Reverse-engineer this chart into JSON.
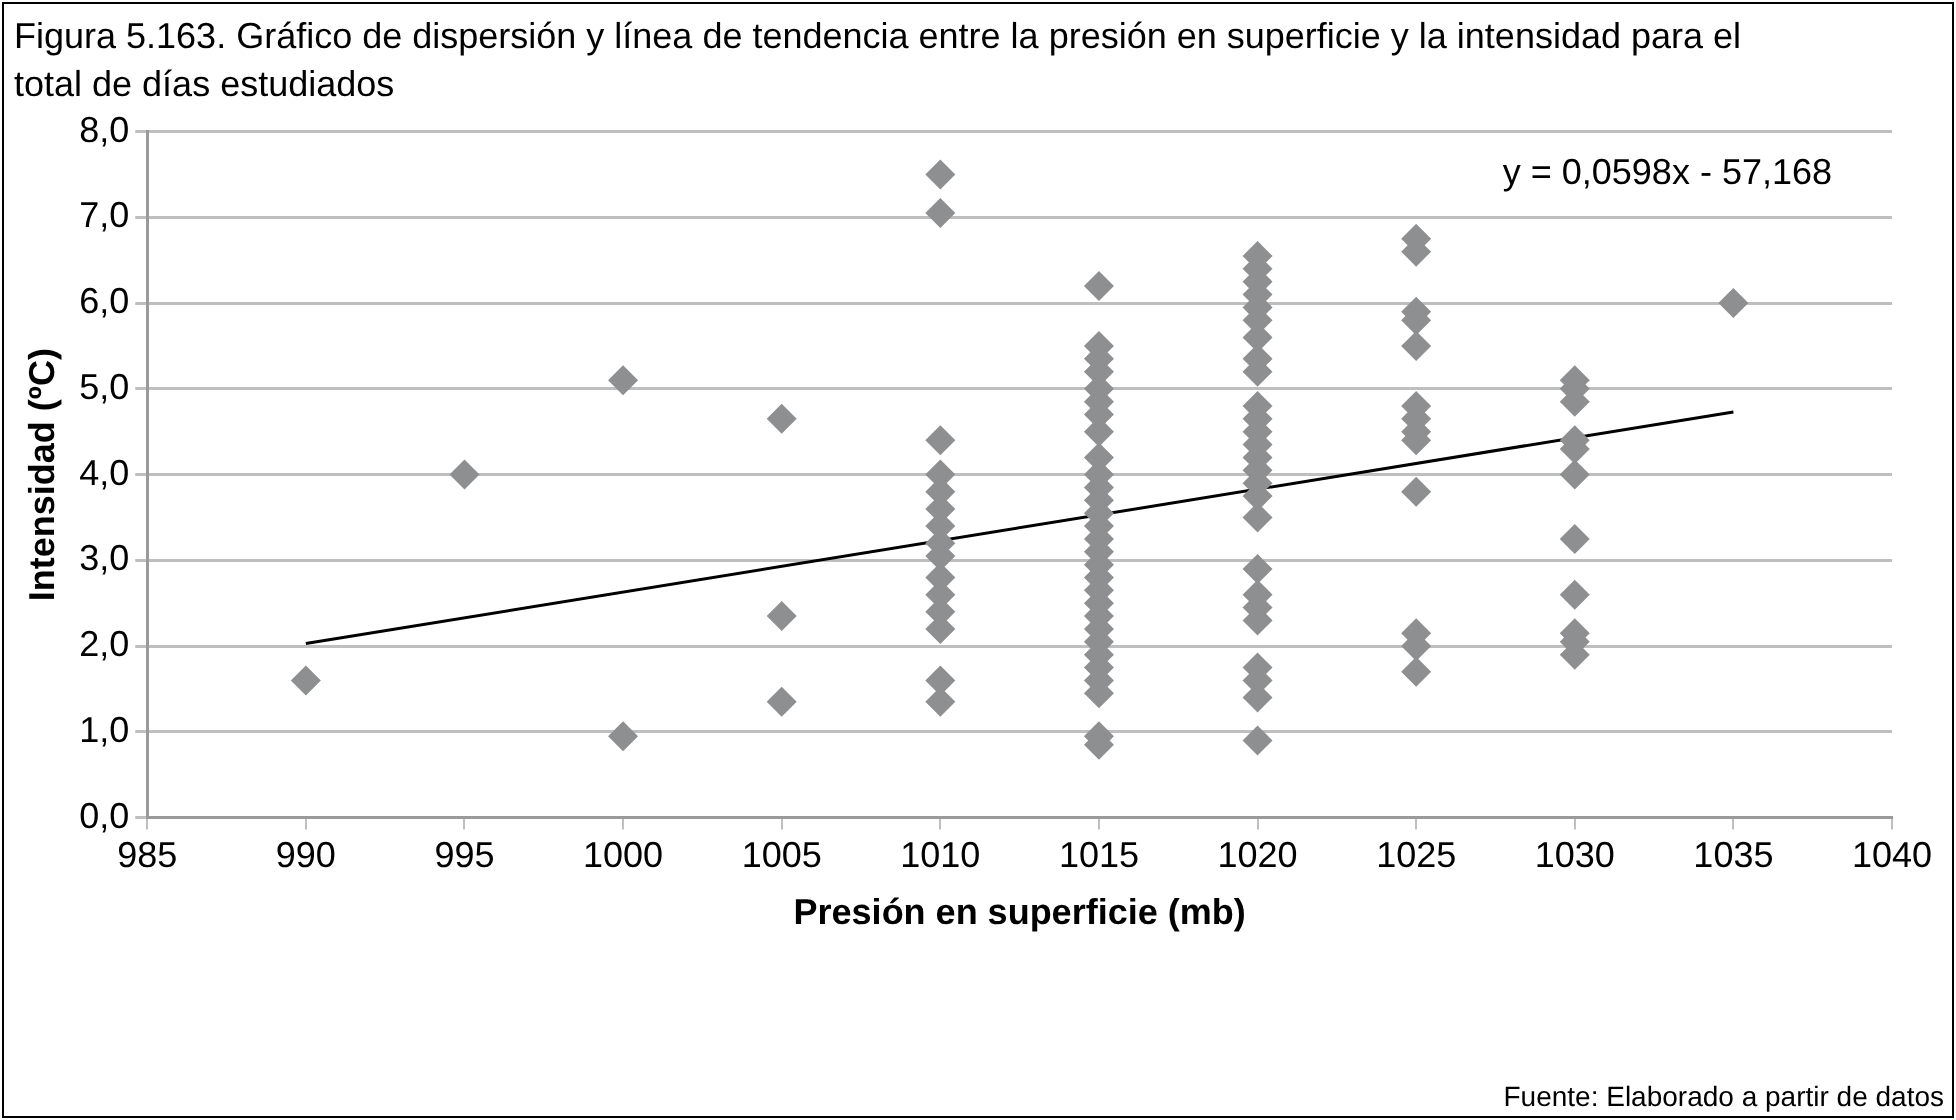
{
  "chart_data": {
    "type": "scatter",
    "title": "Figura 5.163. Gráfico de dispersión y línea de tendencia entre la presión en superficie y la intensidad para el total de días estudiados",
    "xlabel": "Presión en superficie (mb)",
    "ylabel": "Intensidad (ºC)",
    "annotations": [
      "y = 0,0598x - 57,168",
      "Fuente: Elaborado a partir de datos"
    ],
    "series": [
      {
        "color": "#8e8f91",
        "marker": "diamond",
        "x": [
          990,
          995,
          1000,
          1000,
          1005,
          1005,
          1005,
          1010,
          1010,
          1010,
          1010,
          1010,
          1010,
          1010,
          1010,
          1010,
          1010,
          1010,
          1010,
          1010,
          1010,
          1010,
          1015,
          1015,
          1015,
          1015,
          1015,
          1015,
          1015,
          1015,
          1015,
          1015,
          1015,
          1015,
          1015,
          1015,
          1015,
          1015,
          1015,
          1015,
          1015,
          1015,
          1015,
          1015,
          1015,
          1015,
          1015,
          1015,
          1015,
          1015,
          1015,
          1020,
          1020,
          1020,
          1020,
          1020,
          1020,
          1020,
          1020,
          1020,
          1020,
          1020,
          1020,
          1020,
          1020,
          1020,
          1020,
          1020,
          1020,
          1020,
          1020,
          1020,
          1020,
          1020,
          1020,
          1020,
          1020,
          1025,
          1025,
          1025,
          1025,
          1025,
          1025,
          1025,
          1025,
          1025,
          1025,
          1025,
          1025,
          1025,
          1030,
          1030,
          1030,
          1030,
          1030,
          1030,
          1030,
          1030,
          1030,
          1030,
          1030,
          1035
        ],
        "values": [
          1.6,
          4.0,
          5.1,
          0.95,
          4.65,
          2.35,
          1.35,
          7.5,
          7.05,
          4.4,
          4.0,
          3.8,
          3.6,
          3.4,
          3.2,
          3.05,
          2.8,
          2.6,
          2.4,
          2.2,
          1.6,
          1.35,
          6.2,
          5.5,
          5.35,
          5.2,
          5.0,
          4.85,
          4.7,
          4.5,
          4.2,
          4.0,
          3.85,
          3.7,
          3.55,
          3.4,
          3.25,
          3.1,
          2.95,
          2.8,
          2.65,
          2.5,
          2.35,
          2.2,
          2.05,
          1.9,
          1.75,
          1.6,
          1.45,
          0.95,
          0.85,
          6.55,
          6.4,
          6.25,
          6.1,
          5.95,
          5.8,
          5.6,
          5.35,
          5.2,
          4.8,
          4.65,
          4.5,
          4.35,
          4.2,
          4.05,
          3.9,
          3.75,
          3.5,
          2.9,
          2.6,
          2.45,
          2.3,
          1.75,
          1.6,
          1.4,
          0.9,
          6.75,
          6.6,
          5.9,
          5.8,
          5.5,
          4.8,
          4.65,
          4.5,
          4.4,
          3.8,
          2.15,
          2.0,
          1.7,
          5.1,
          5.0,
          4.85,
          4.4,
          4.3,
          4.0,
          3.25,
          2.6,
          2.15,
          2.05,
          1.9,
          6.0
        ]
      },
      {
        "type": "line",
        "color": "#000000",
        "marker": "none",
        "line_style": "solid",
        "x": [
          990,
          1035
        ],
        "values": [
          2.03,
          4.73
        ]
      }
    ],
    "xlim": [
      985,
      1040
    ],
    "xticks": [
      985,
      990,
      995,
      1000,
      1005,
      1010,
      1015,
      1020,
      1025,
      1030,
      1035,
      1040
    ],
    "ylim": [
      0,
      8
    ],
    "yticks": [
      {
        "value": 0,
        "label": "0,0"
      },
      {
        "value": 1,
        "label": "1,0"
      },
      {
        "value": 2,
        "label": "2,0"
      },
      {
        "value": 3,
        "label": "3,0"
      },
      {
        "value": 4,
        "label": "4,0"
      },
      {
        "value": 5,
        "label": "5,0"
      },
      {
        "value": 6,
        "label": "6,0"
      },
      {
        "value": 7,
        "label": "7,0"
      },
      {
        "value": 8,
        "label": "8,0"
      }
    ],
    "grid": "y",
    "legend": false
  }
}
